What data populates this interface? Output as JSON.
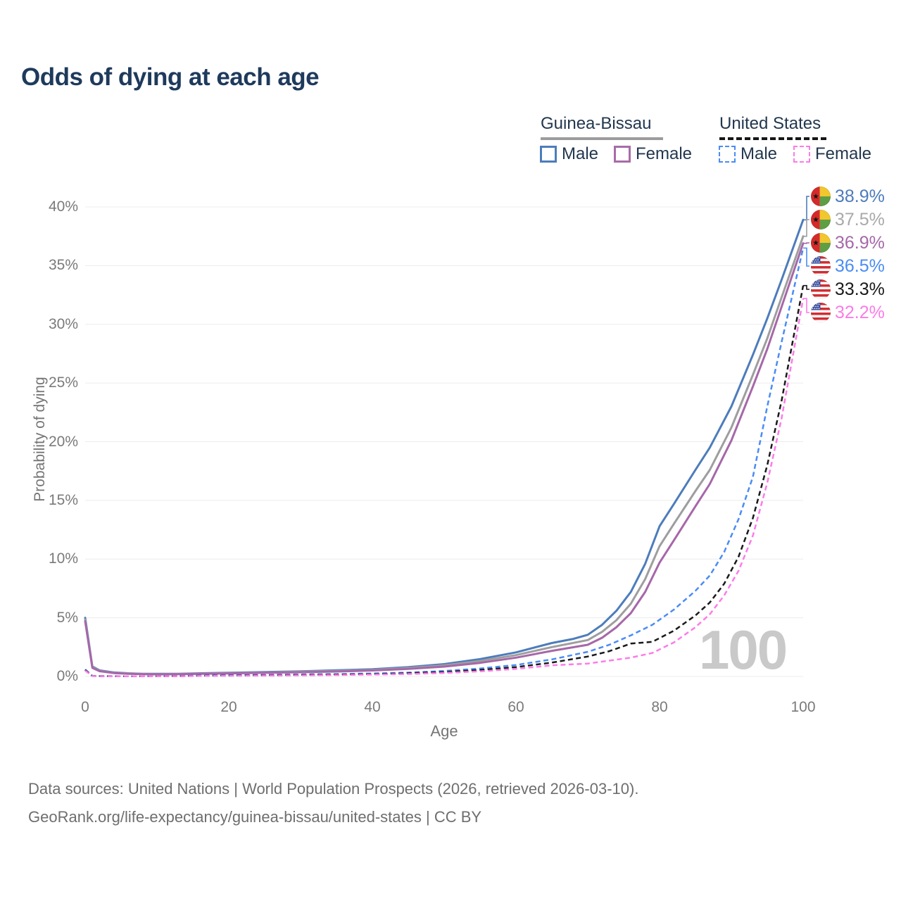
{
  "page": {
    "title": "Odds of dying at each age",
    "watermark": "100"
  },
  "legend": {
    "groups": [
      {
        "label": "Guinea-Bissau",
        "line_style": "solid",
        "line_color": "#9c9c9c",
        "items": [
          {
            "label": "Male",
            "color": "#4d7cbb"
          },
          {
            "label": "Female",
            "color": "#a86ca8"
          }
        ]
      },
      {
        "label": "United States",
        "line_style": "dashed",
        "line_color": "#161616",
        "items": [
          {
            "label": "Male",
            "color": "#4a8cf5"
          },
          {
            "label": "Female",
            "color": "#fb7ce8"
          }
        ]
      }
    ]
  },
  "chart_data": {
    "type": "line",
    "title": "Odds of dying at each age",
    "xlabel": "Age",
    "ylabel": "Probability of dying",
    "xlim": [
      0,
      100
    ],
    "ylim": [
      0,
      40
    ],
    "x_ticks": [
      0,
      20,
      40,
      60,
      80,
      100
    ],
    "y_ticks": [
      0,
      5,
      10,
      15,
      20,
      25,
      30,
      35,
      40
    ],
    "grid": true,
    "legend_position": "top-right",
    "series": [
      {
        "id": "gw-male",
        "name": "Guinea-Bissau Male",
        "country": "gw",
        "dash": false,
        "color": "#4d7cbb",
        "label_color": "#4d7cbb",
        "end_label": "38.9%",
        "end_value": 38.9,
        "points": [
          [
            0,
            5.0
          ],
          [
            1,
            0.85
          ],
          [
            2,
            0.52
          ],
          [
            4,
            0.34
          ],
          [
            6,
            0.27
          ],
          [
            8,
            0.23
          ],
          [
            10,
            0.22
          ],
          [
            13,
            0.23
          ],
          [
            16,
            0.27
          ],
          [
            20,
            0.32
          ],
          [
            25,
            0.38
          ],
          [
            30,
            0.44
          ],
          [
            35,
            0.52
          ],
          [
            40,
            0.62
          ],
          [
            45,
            0.8
          ],
          [
            50,
            1.05
          ],
          [
            55,
            1.48
          ],
          [
            60,
            2.05
          ],
          [
            65,
            2.85
          ],
          [
            68,
            3.2
          ],
          [
            70,
            3.55
          ],
          [
            72,
            4.4
          ],
          [
            74,
            5.6
          ],
          [
            76,
            7.2
          ],
          [
            78,
            9.6
          ],
          [
            80,
            12.8
          ],
          [
            82,
            14.7
          ],
          [
            85,
            17.6
          ],
          [
            87,
            19.5
          ],
          [
            90,
            23.0
          ],
          [
            93,
            27.4
          ],
          [
            95,
            30.5
          ],
          [
            97,
            33.8
          ],
          [
            100,
            38.9
          ]
        ]
      },
      {
        "id": "gw-all",
        "name": "Guinea-Bissau (both sexes)",
        "country": "gw",
        "dash": false,
        "color": "#9e9e9e",
        "label_color": "#a9a9a9",
        "end_label": "37.5%",
        "end_value": 37.5,
        "points": [
          [
            0,
            4.85
          ],
          [
            1,
            0.79
          ],
          [
            2,
            0.48
          ],
          [
            4,
            0.31
          ],
          [
            6,
            0.25
          ],
          [
            8,
            0.21
          ],
          [
            10,
            0.2
          ],
          [
            13,
            0.21
          ],
          [
            16,
            0.24
          ],
          [
            20,
            0.29
          ],
          [
            25,
            0.34
          ],
          [
            30,
            0.4
          ],
          [
            35,
            0.47
          ],
          [
            40,
            0.56
          ],
          [
            45,
            0.72
          ],
          [
            50,
            0.94
          ],
          [
            55,
            1.32
          ],
          [
            60,
            1.82
          ],
          [
            65,
            2.5
          ],
          [
            70,
            3.1
          ],
          [
            72,
            3.8
          ],
          [
            74,
            4.8
          ],
          [
            76,
            6.2
          ],
          [
            78,
            8.3
          ],
          [
            80,
            11.1
          ],
          [
            82,
            13.0
          ],
          [
            85,
            15.8
          ],
          [
            87,
            17.6
          ],
          [
            90,
            21.2
          ],
          [
            93,
            25.7
          ],
          [
            95,
            28.8
          ],
          [
            97,
            32.3
          ],
          [
            100,
            37.5
          ]
        ]
      },
      {
        "id": "gw-female",
        "name": "Guinea-Bissau Female",
        "country": "gw",
        "dash": false,
        "color": "#a667a9",
        "label_color": "#a667a9",
        "end_label": "36.9%",
        "end_value": 36.9,
        "points": [
          [
            0,
            4.7
          ],
          [
            1,
            0.73
          ],
          [
            2,
            0.45
          ],
          [
            4,
            0.29
          ],
          [
            6,
            0.23
          ],
          [
            8,
            0.2
          ],
          [
            10,
            0.18
          ],
          [
            13,
            0.19
          ],
          [
            16,
            0.22
          ],
          [
            20,
            0.26
          ],
          [
            25,
            0.31
          ],
          [
            30,
            0.36
          ],
          [
            35,
            0.42
          ],
          [
            40,
            0.51
          ],
          [
            45,
            0.64
          ],
          [
            50,
            0.84
          ],
          [
            55,
            1.16
          ],
          [
            60,
            1.6
          ],
          [
            65,
            2.18
          ],
          [
            70,
            2.7
          ],
          [
            72,
            3.3
          ],
          [
            74,
            4.2
          ],
          [
            76,
            5.4
          ],
          [
            78,
            7.2
          ],
          [
            80,
            9.7
          ],
          [
            82,
            11.6
          ],
          [
            85,
            14.5
          ],
          [
            87,
            16.4
          ],
          [
            90,
            20.1
          ],
          [
            93,
            24.7
          ],
          [
            95,
            27.9
          ],
          [
            97,
            31.5
          ],
          [
            100,
            36.9
          ]
        ]
      },
      {
        "id": "us-male",
        "name": "United States Male",
        "country": "us",
        "dash": true,
        "color": "#4a8cf5",
        "label_color": "#4a8cf5",
        "end_label": "36.5%",
        "end_value": 36.5,
        "points": [
          [
            0,
            0.6
          ],
          [
            1,
            0.05
          ],
          [
            3,
            0.03
          ],
          [
            5,
            0.02
          ],
          [
            10,
            0.02
          ],
          [
            13,
            0.04
          ],
          [
            16,
            0.08
          ],
          [
            20,
            0.11
          ],
          [
            25,
            0.14
          ],
          [
            30,
            0.17
          ],
          [
            35,
            0.2
          ],
          [
            40,
            0.25
          ],
          [
            45,
            0.33
          ],
          [
            50,
            0.47
          ],
          [
            55,
            0.68
          ],
          [
            60,
            0.98
          ],
          [
            65,
            1.45
          ],
          [
            70,
            2.1
          ],
          [
            73,
            2.7
          ],
          [
            76,
            3.5
          ],
          [
            79,
            4.4
          ],
          [
            82,
            5.7
          ],
          [
            85,
            7.3
          ],
          [
            87,
            8.6
          ],
          [
            89,
            10.6
          ],
          [
            91,
            13.4
          ],
          [
            93,
            17.0
          ],
          [
            95,
            23.0
          ],
          [
            97,
            28.5
          ],
          [
            100,
            36.5
          ]
        ]
      },
      {
        "id": "us-all",
        "name": "United States (both sexes)",
        "country": "us",
        "dash": true,
        "color": "#1a1a1a",
        "label_color": "#1a1a1a",
        "end_label": "33.3%",
        "end_value": 33.3,
        "points": [
          [
            0,
            0.55
          ],
          [
            1,
            0.04
          ],
          [
            3,
            0.025
          ],
          [
            5,
            0.018
          ],
          [
            10,
            0.016
          ],
          [
            13,
            0.03
          ],
          [
            16,
            0.06
          ],
          [
            20,
            0.08
          ],
          [
            25,
            0.1
          ],
          [
            30,
            0.13
          ],
          [
            35,
            0.16
          ],
          [
            40,
            0.2
          ],
          [
            45,
            0.27
          ],
          [
            50,
            0.38
          ],
          [
            55,
            0.55
          ],
          [
            60,
            0.8
          ],
          [
            65,
            1.18
          ],
          [
            70,
            1.7
          ],
          [
            73,
            2.15
          ],
          [
            76,
            2.8
          ],
          [
            79,
            2.95
          ],
          [
            82,
            3.9
          ],
          [
            85,
            5.2
          ],
          [
            87,
            6.3
          ],
          [
            89,
            7.9
          ],
          [
            91,
            10.2
          ],
          [
            93,
            13.5
          ],
          [
            95,
            18.0
          ],
          [
            97,
            23.5
          ],
          [
            100,
            33.3
          ]
        ]
      },
      {
        "id": "us-female",
        "name": "United States Female",
        "country": "us",
        "dash": true,
        "color": "#fb7ce8",
        "label_color": "#fb7ce8",
        "end_label": "32.2%",
        "end_value": 32.2,
        "points": [
          [
            0,
            0.5
          ],
          [
            1,
            0.035
          ],
          [
            3,
            0.02
          ],
          [
            5,
            0.015
          ],
          [
            10,
            0.013
          ],
          [
            13,
            0.025
          ],
          [
            16,
            0.04
          ],
          [
            20,
            0.055
          ],
          [
            25,
            0.07
          ],
          [
            30,
            0.09
          ],
          [
            35,
            0.12
          ],
          [
            40,
            0.16
          ],
          [
            45,
            0.21
          ],
          [
            50,
            0.3
          ],
          [
            55,
            0.44
          ],
          [
            60,
            0.64
          ],
          [
            65,
            0.95
          ],
          [
            70,
            1.1
          ],
          [
            73,
            1.35
          ],
          [
            76,
            1.6
          ],
          [
            79,
            2.0
          ],
          [
            82,
            2.9
          ],
          [
            85,
            4.2
          ],
          [
            87,
            5.3
          ],
          [
            89,
            6.9
          ],
          [
            91,
            9.0
          ],
          [
            93,
            12.0
          ],
          [
            95,
            16.5
          ],
          [
            97,
            22.0
          ],
          [
            100,
            32.2
          ]
        ]
      }
    ]
  },
  "footer": {
    "line1": "Data sources: United Nations | World Population Prospects (2026, retrieved 2026-03-10).",
    "line2": "GeoRank.org/life-expectancy/guinea-bissau/united-states | CC BY"
  }
}
